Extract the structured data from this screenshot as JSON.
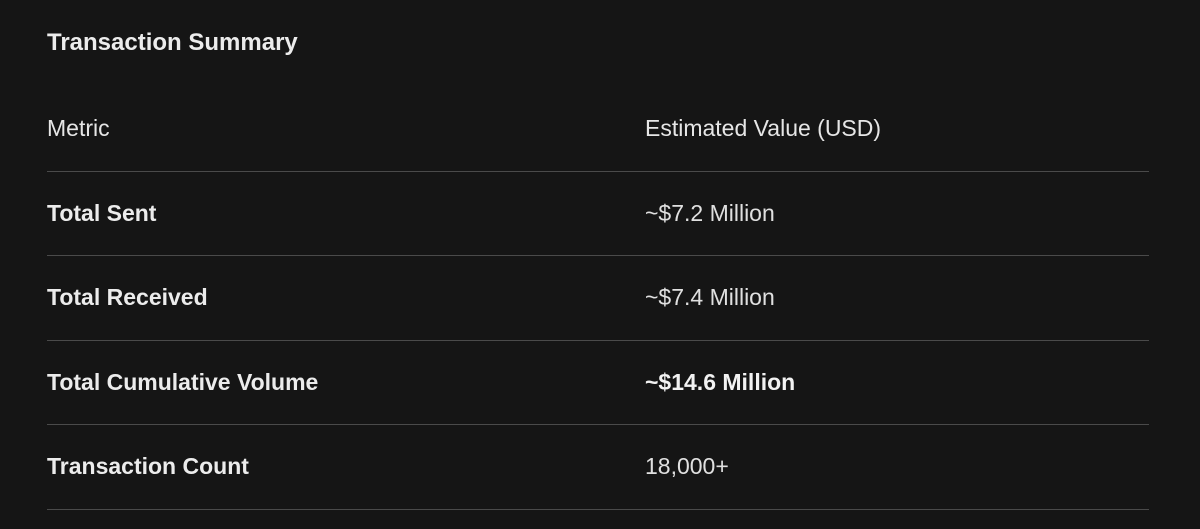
{
  "header": {
    "title": "Transaction Summary"
  },
  "table": {
    "columns": [
      "Metric",
      "Estimated Value (USD)"
    ],
    "rows": [
      [
        "Total Sent",
        "~$7.2 Million"
      ],
      [
        "Total Received",
        "~$7.4 Million"
      ],
      [
        "Total Cumulative Volume",
        "~$14.6 Million"
      ],
      [
        "Transaction Count",
        "18,000+"
      ]
    ]
  }
}
